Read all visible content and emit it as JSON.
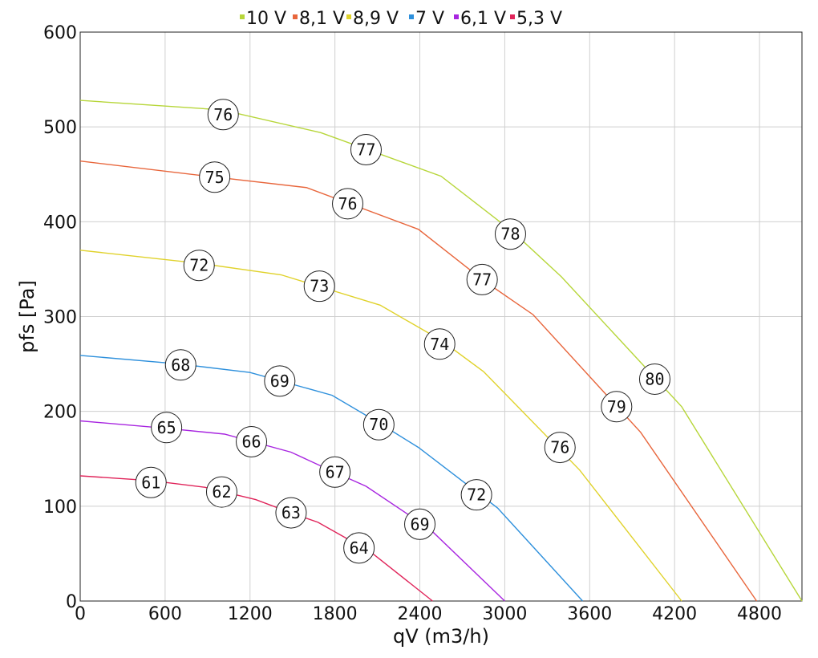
{
  "chart_data": {
    "type": "line",
    "xlabel": "qV (m3/h)",
    "ylabel": "pfs [Pa]",
    "xlim": [
      0,
      5100
    ],
    "ylim": [
      0,
      600
    ],
    "x_ticks": [
      0,
      600,
      1200,
      1800,
      2400,
      3000,
      3600,
      4200,
      4800
    ],
    "y_ticks": [
      0,
      100,
      200,
      300,
      400,
      500,
      600
    ],
    "grid": true,
    "legend_position": "top-center",
    "series": [
      {
        "name": "10 V",
        "color": "#b7d63a",
        "points": [
          [
            0,
            528
          ],
          [
            1000,
            518
          ],
          [
            1700,
            494
          ],
          [
            2550,
            448
          ],
          [
            3060,
            389
          ],
          [
            3400,
            342
          ],
          [
            4250,
            205
          ],
          [
            5100,
            0
          ]
        ],
        "labels": [
          {
            "x": 1010,
            "y": 513,
            "text": "76"
          },
          {
            "x": 2020,
            "y": 476,
            "text": "77"
          },
          {
            "x": 3040,
            "y": 387,
            "text": "78"
          },
          {
            "x": 4060,
            "y": 234,
            "text": "80"
          }
        ]
      },
      {
        "name": "8,1 V",
        "color": "#e8663c",
        "points": [
          [
            0,
            464
          ],
          [
            900,
            448
          ],
          [
            1600,
            436
          ],
          [
            2390,
            392
          ],
          [
            2850,
            338
          ],
          [
            3200,
            302
          ],
          [
            3960,
            178
          ],
          [
            4780,
            0
          ]
        ],
        "labels": [
          {
            "x": 950,
            "y": 447,
            "text": "75"
          },
          {
            "x": 1890,
            "y": 419,
            "text": "76"
          },
          {
            "x": 2840,
            "y": 339,
            "text": "77"
          },
          {
            "x": 3790,
            "y": 205,
            "text": "79"
          }
        ]
      },
      {
        "name": "8,9 V",
        "color": "#e0d22b",
        "points": [
          [
            0,
            370
          ],
          [
            850,
            356
          ],
          [
            1420,
            344
          ],
          [
            2120,
            312
          ],
          [
            2550,
            275
          ],
          [
            2850,
            242
          ],
          [
            3530,
            138
          ],
          [
            4250,
            0
          ]
        ],
        "labels": [
          {
            "x": 840,
            "y": 354,
            "text": "72"
          },
          {
            "x": 1690,
            "y": 332,
            "text": "73"
          },
          {
            "x": 2540,
            "y": 271,
            "text": "74"
          },
          {
            "x": 3390,
            "y": 162,
            "text": "76"
          }
        ]
      },
      {
        "name": "7 V",
        "color": "#2e90dc",
        "points": [
          [
            0,
            259
          ],
          [
            700,
            250
          ],
          [
            1200,
            241
          ],
          [
            1780,
            217
          ],
          [
            2120,
            187
          ],
          [
            2390,
            162
          ],
          [
            2950,
            98
          ],
          [
            3550,
            0
          ]
        ],
        "labels": [
          {
            "x": 710,
            "y": 249,
            "text": "68"
          },
          {
            "x": 1410,
            "y": 232,
            "text": "69"
          },
          {
            "x": 2110,
            "y": 186,
            "text": "70"
          },
          {
            "x": 2800,
            "y": 112,
            "text": "72"
          }
        ]
      },
      {
        "name": "6,1 V",
        "color": "#a826e0",
        "points": [
          [
            0,
            190
          ],
          [
            620,
            182
          ],
          [
            1020,
            176
          ],
          [
            1490,
            157
          ],
          [
            1780,
            137
          ],
          [
            2020,
            121
          ],
          [
            2470,
            76
          ],
          [
            3000,
            0
          ]
        ],
        "labels": [
          {
            "x": 610,
            "y": 183,
            "text": "65"
          },
          {
            "x": 1210,
            "y": 168,
            "text": "66"
          },
          {
            "x": 1800,
            "y": 136,
            "text": "67"
          },
          {
            "x": 2400,
            "y": 81,
            "text": "69"
          }
        ]
      },
      {
        "name": "5,3 V",
        "color": "#e0245a",
        "points": [
          [
            0,
            132
          ],
          [
            500,
            127
          ],
          [
            880,
            120
          ],
          [
            1240,
            107
          ],
          [
            1490,
            93
          ],
          [
            1680,
            83
          ],
          [
            2050,
            52
          ],
          [
            2490,
            0
          ]
        ],
        "labels": [
          {
            "x": 500,
            "y": 125,
            "text": "61"
          },
          {
            "x": 1000,
            "y": 115,
            "text": "62"
          },
          {
            "x": 1490,
            "y": 93,
            "text": "63"
          },
          {
            "x": 1970,
            "y": 56,
            "text": "64"
          }
        ]
      }
    ]
  }
}
